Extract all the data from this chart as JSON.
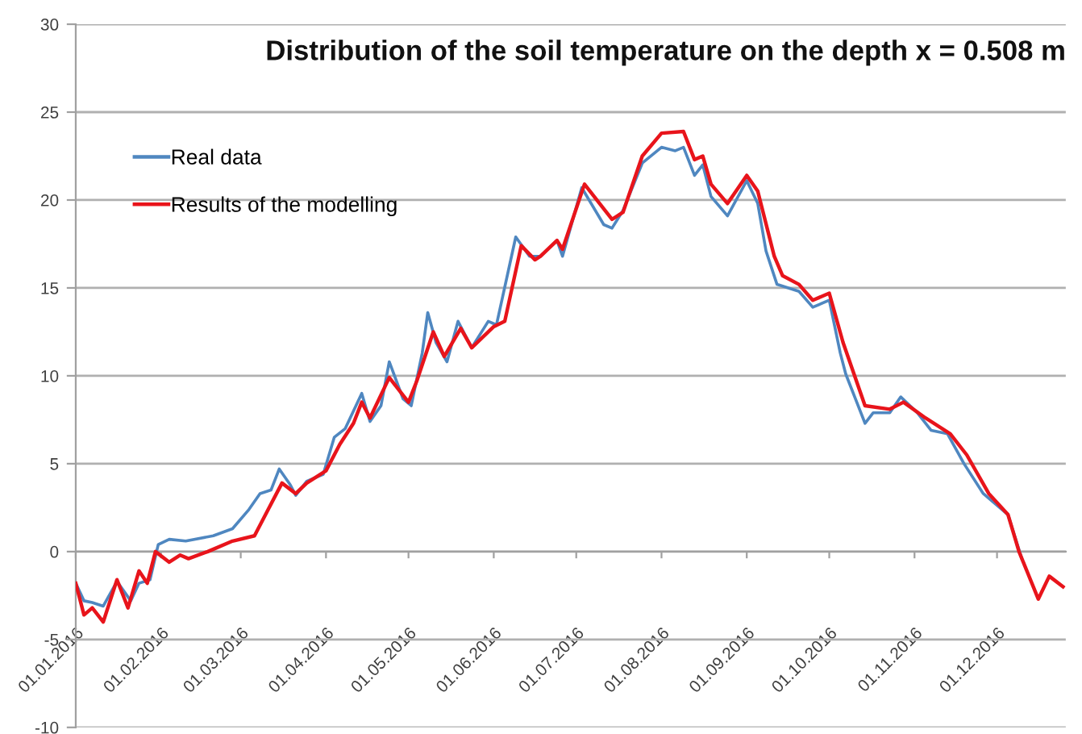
{
  "chart_data": {
    "type": "line",
    "title": "Distribution of the soil temperature on the depth x = 0.508 m",
    "xlim": [
      "2016-01-01",
      "2016-12-26"
    ],
    "xticks": [
      {
        "value": "2016-01-01",
        "label": "01.01.2016"
      },
      {
        "value": "2016-02-01",
        "label": "01.02.2016"
      },
      {
        "value": "2016-03-01",
        "label": "01.03.2016"
      },
      {
        "value": "2016-04-01",
        "label": "01.04.2016"
      },
      {
        "value": "2016-05-01",
        "label": "01.05.2016"
      },
      {
        "value": "2016-06-01",
        "label": "01.06.2016"
      },
      {
        "value": "2016-07-01",
        "label": "01.07.2016"
      },
      {
        "value": "2016-08-01",
        "label": "01.08.2016"
      },
      {
        "value": "2016-09-01",
        "label": "01.09.2016"
      },
      {
        "value": "2016-10-01",
        "label": "01.10.2016"
      },
      {
        "value": "2016-11-01",
        "label": "01.11.2016"
      },
      {
        "value": "2016-12-01",
        "label": "01.12.2016"
      }
    ],
    "ylim": [
      -10,
      30
    ],
    "yticks": [
      -10,
      -5,
      0,
      5,
      10,
      15,
      20,
      25,
      30
    ],
    "grid": "y",
    "legend": "top left",
    "marker": "none",
    "line_style": "solid",
    "series": [
      {
        "name": "Real data",
        "color": "#4f87c0",
        "x": [
          "2016-01-01",
          "2016-01-04",
          "2016-01-07",
          "2016-01-11",
          "2016-01-16",
          "2016-01-21",
          "2016-01-24",
          "2016-01-28",
          "2016-01-31",
          "2016-02-04",
          "2016-02-10",
          "2016-02-20",
          "2016-02-27",
          "2016-03-04",
          "2016-03-08",
          "2016-03-12",
          "2016-03-15",
          "2016-03-19",
          "2016-03-21",
          "2016-03-25",
          "2016-03-31",
          "2016-04-04",
          "2016-04-08",
          "2016-04-14",
          "2016-04-17",
          "2016-04-21",
          "2016-04-24",
          "2016-04-29",
          "2016-05-02",
          "2016-05-06",
          "2016-05-08",
          "2016-05-11",
          "2016-05-15",
          "2016-05-19",
          "2016-05-24",
          "2016-05-30",
          "2016-06-02",
          "2016-06-09",
          "2016-06-14",
          "2016-06-18",
          "2016-06-24",
          "2016-06-26",
          "2016-07-03",
          "2016-07-11",
          "2016-07-14",
          "2016-07-18",
          "2016-07-25",
          "2016-08-01",
          "2016-08-06",
          "2016-08-09",
          "2016-08-13",
          "2016-08-16",
          "2016-08-19",
          "2016-08-25",
          "2016-09-01",
          "2016-09-05",
          "2016-09-08",
          "2016-09-12",
          "2016-09-20",
          "2016-09-25",
          "2016-10-01",
          "2016-10-05",
          "2016-10-07",
          "2016-10-14",
          "2016-10-17",
          "2016-10-23",
          "2016-10-27",
          "2016-11-02",
          "2016-11-07",
          "2016-11-13",
          "2016-11-19",
          "2016-11-26",
          "2016-12-05",
          "2016-12-10"
        ],
        "values": [
          -1.8,
          -2.8,
          -2.9,
          -3.1,
          -1.7,
          -2.8,
          -1.8,
          -1.6,
          0.4,
          0.7,
          0.6,
          0.9,
          1.3,
          2.4,
          3.3,
          3.5,
          4.7,
          3.8,
          3.2,
          4.0,
          4.4,
          6.5,
          7.0,
          9.0,
          7.4,
          8.3,
          10.8,
          8.7,
          8.3,
          11.3,
          13.6,
          11.9,
          10.8,
          13.1,
          11.6,
          13.1,
          12.9,
          17.9,
          16.8,
          16.8,
          17.7,
          16.8,
          20.7,
          18.6,
          18.4,
          19.4,
          22.1,
          23.0,
          22.8,
          23.0,
          21.4,
          22.0,
          20.2,
          19.1,
          21.1,
          19.8,
          17.1,
          15.2,
          14.8,
          13.9,
          14.3,
          11.3,
          10.1,
          7.3,
          7.9,
          7.9,
          8.8,
          7.9,
          6.9,
          6.7,
          5.0,
          3.3,
          2.1,
          -0.4
        ]
      },
      {
        "name": "Results of the modelling",
        "color": "#e8141b",
        "x": [
          "2016-01-01",
          "2016-01-04",
          "2016-01-07",
          "2016-01-11",
          "2016-01-16",
          "2016-01-20",
          "2016-01-24",
          "2016-01-27",
          "2016-01-30",
          "2016-02-04",
          "2016-02-08",
          "2016-02-11",
          "2016-02-18",
          "2016-02-27",
          "2016-03-06",
          "2016-03-11",
          "2016-03-16",
          "2016-03-21",
          "2016-03-25",
          "2016-04-01",
          "2016-04-06",
          "2016-04-11",
          "2016-04-14",
          "2016-04-17",
          "2016-04-24",
          "2016-05-01",
          "2016-05-04",
          "2016-05-10",
          "2016-05-14",
          "2016-05-20",
          "2016-05-24",
          "2016-06-01",
          "2016-06-05",
          "2016-06-11",
          "2016-06-16",
          "2016-06-18",
          "2016-06-24",
          "2016-06-26",
          "2016-07-04",
          "2016-07-11",
          "2016-07-14",
          "2016-07-18",
          "2016-07-25",
          "2016-08-01",
          "2016-08-09",
          "2016-08-13",
          "2016-08-16",
          "2016-08-19",
          "2016-08-25",
          "2016-09-01",
          "2016-09-05",
          "2016-09-11",
          "2016-09-14",
          "2016-09-20",
          "2016-09-25",
          "2016-10-01",
          "2016-10-06",
          "2016-10-10",
          "2016-10-14",
          "2016-10-23",
          "2016-10-28",
          "2016-11-05",
          "2016-11-14",
          "2016-11-20",
          "2016-11-28",
          "2016-12-05",
          "2016-12-09",
          "2016-12-16",
          "2016-12-20",
          "2016-12-25"
        ],
        "values": [
          -1.8,
          -3.6,
          -3.2,
          -4.0,
          -1.6,
          -3.2,
          -1.1,
          -1.8,
          0.0,
          -0.6,
          -0.2,
          -0.4,
          0.0,
          0.6,
          0.9,
          2.4,
          3.9,
          3.3,
          3.9,
          4.6,
          6.1,
          7.3,
          8.5,
          7.6,
          9.9,
          8.5,
          9.7,
          12.5,
          11.1,
          12.7,
          11.6,
          12.8,
          13.1,
          17.4,
          16.6,
          16.8,
          17.7,
          17.2,
          20.9,
          19.5,
          18.9,
          19.3,
          22.5,
          23.8,
          23.9,
          22.3,
          22.5,
          20.9,
          19.8,
          21.4,
          20.5,
          16.8,
          15.7,
          15.2,
          14.3,
          14.7,
          11.9,
          10.1,
          8.3,
          8.1,
          8.5,
          7.6,
          6.7,
          5.5,
          3.3,
          2.1,
          0.0,
          -2.7,
          -1.4,
          -2.0
        ]
      }
    ]
  }
}
